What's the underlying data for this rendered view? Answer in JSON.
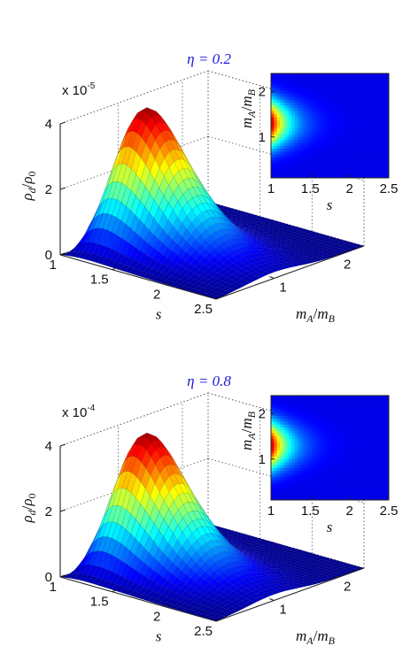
{
  "chart_data": [
    {
      "type": "surface",
      "title": "η = 0.2",
      "zlabel": "ρd/ρ0",
      "zlabel_base": "ρ",
      "zlabel_sub1": "d",
      "zlabel_slash": "/",
      "zlabel_sub2": "0",
      "zexp": "x 10",
      "zexp_power": "-5",
      "zlim": [
        0,
        4
      ],
      "zticks": [
        "0",
        "2",
        "4"
      ],
      "xlabel": "s",
      "xlim": [
        1,
        2.5
      ],
      "xticks": [
        "1",
        "1.5",
        "2",
        "2.5"
      ],
      "ylabel": "mA/mB",
      "ylabel_m1": "m",
      "ylabel_sub1": "A",
      "ylabel_slash": "/",
      "ylabel_m2": "m",
      "ylabel_sub2": "B",
      "ylim": [
        0.1,
        2.4
      ],
      "yticks": [
        "1",
        "2"
      ],
      "peak": {
        "s": 1.25,
        "mA_mB": 1.0,
        "value": 4.1
      },
      "colormap": "jet",
      "inset": {
        "type": "heatmap",
        "xlabel": "s",
        "ylabel": "mA/mB",
        "xticks": [
          "1",
          "1.5",
          "2",
          "2.5"
        ],
        "yticks": [
          "1",
          "2"
        ],
        "hotspot": {
          "s": 1.0,
          "mA_mB": 1.3
        }
      }
    },
    {
      "type": "surface",
      "title": "η = 0.8",
      "zlabel": "ρd/ρ0",
      "zlabel_base": "ρ",
      "zlabel_sub1": "d",
      "zlabel_slash": "/",
      "zlabel_sub2": "0",
      "zexp": "x 10",
      "zexp_power": "-4",
      "zlim": [
        0,
        4
      ],
      "zticks": [
        "0",
        "2",
        "4"
      ],
      "xlabel": "s",
      "xlim": [
        1,
        2.5
      ],
      "xticks": [
        "1",
        "1.5",
        "2",
        "2.5"
      ],
      "ylabel": "mA/mB",
      "ylabel_m1": "m",
      "ylabel_sub1": "A",
      "ylabel_slash": "/",
      "ylabel_m2": "m",
      "ylabel_sub2": "B",
      "ylim": [
        0.1,
        2.4
      ],
      "yticks": [
        "1",
        "2"
      ],
      "peak": {
        "s": 1.25,
        "mA_mB": 1.0,
        "value": 4.0
      },
      "colormap": "jet",
      "inset": {
        "type": "heatmap",
        "xlabel": "s",
        "ylabel": "mA/mB",
        "xticks": [
          "1",
          "1.5",
          "2",
          "2.5"
        ],
        "yticks": [
          "1",
          "2"
        ],
        "hotspot": {
          "s": 1.0,
          "mA_mB": 1.3
        }
      }
    }
  ]
}
